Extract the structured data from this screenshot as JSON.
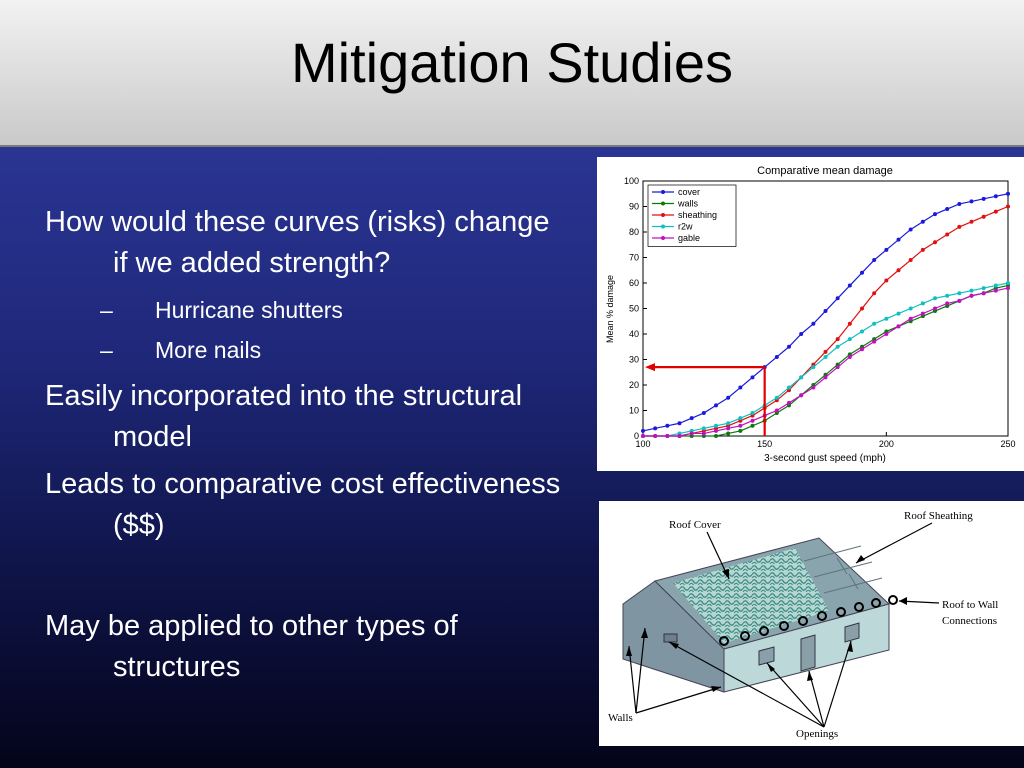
{
  "slide": {
    "title": "Mitigation Studies",
    "bullets": [
      {
        "text": "How would these curves (risks) change if we added strength?",
        "sub": [
          "Hurricane shutters",
          "More nails"
        ]
      },
      {
        "text": "Easily incorporated into the structural model"
      },
      {
        "text": "Leads to comparative cost effectiveness ($$)"
      },
      {
        "text": "May be applied to other types of structures"
      }
    ],
    "dash": "–"
  },
  "chart_data": {
    "type": "line",
    "title": "Comparative mean damage",
    "xlabel": "3-second gust speed (mph)",
    "ylabel": "Mean % damage",
    "xlim": [
      100,
      250
    ],
    "ylim": [
      0,
      100
    ],
    "xticks": [
      100,
      150,
      200,
      250
    ],
    "yticks": [
      0,
      10,
      20,
      30,
      40,
      50,
      60,
      70,
      80,
      90,
      100
    ],
    "legend_position": "top-left",
    "grid": false,
    "annotation_arrow": {
      "x": 150,
      "y": 27,
      "color": "#e00000"
    },
    "x": [
      100,
      105,
      110,
      115,
      120,
      125,
      130,
      135,
      140,
      145,
      150,
      155,
      160,
      165,
      170,
      175,
      180,
      185,
      190,
      195,
      200,
      205,
      210,
      215,
      220,
      225,
      230,
      235,
      240,
      245,
      250
    ],
    "series": [
      {
        "name": "cover",
        "color": "#1a1adc",
        "values": [
          2,
          3,
          4,
          5,
          7,
          9,
          12,
          15,
          19,
          23,
          27,
          31,
          35,
          40,
          44,
          49,
          54,
          59,
          64,
          69,
          73,
          77,
          81,
          84,
          87,
          89,
          91,
          92,
          93,
          94,
          95
        ]
      },
      {
        "name": "walls",
        "color": "#0a7a0a",
        "values": [
          0,
          0,
          0,
          0,
          0,
          0,
          0,
          1,
          2,
          4,
          6,
          9,
          12,
          16,
          20,
          24,
          28,
          32,
          35,
          38,
          41,
          43,
          45,
          47,
          49,
          51,
          53,
          55,
          56,
          58,
          59
        ]
      },
      {
        "name": "sheathing",
        "color": "#e01010",
        "values": [
          0,
          0,
          0,
          0,
          1,
          2,
          3,
          4,
          6,
          8,
          11,
          14,
          18,
          23,
          28,
          33,
          38,
          44,
          50,
          56,
          61,
          65,
          69,
          73,
          76,
          79,
          82,
          84,
          86,
          88,
          90
        ]
      },
      {
        "name": "r2w",
        "color": "#10c0c0",
        "values": [
          0,
          0,
          0,
          1,
          2,
          3,
          4,
          5,
          7,
          9,
          12,
          15,
          19,
          23,
          27,
          31,
          35,
          38,
          41,
          44,
          46,
          48,
          50,
          52,
          54,
          55,
          56,
          57,
          58,
          59,
          60
        ]
      },
      {
        "name": "gable",
        "color": "#c010c0",
        "values": [
          0,
          0,
          0,
          0,
          1,
          1,
          2,
          3,
          4,
          6,
          8,
          10,
          13,
          16,
          19,
          23,
          27,
          31,
          34,
          37,
          40,
          43,
          46,
          48,
          50,
          52,
          53,
          55,
          56,
          57,
          58
        ]
      }
    ]
  },
  "diagram": {
    "labels": {
      "roof_cover": "Roof Cover",
      "roof_sheathing": "Roof Sheathing",
      "roof_to_wall_1": "Roof to Wall",
      "roof_to_wall_2": "Connections",
      "walls": "Walls",
      "openings": "Openings"
    }
  }
}
